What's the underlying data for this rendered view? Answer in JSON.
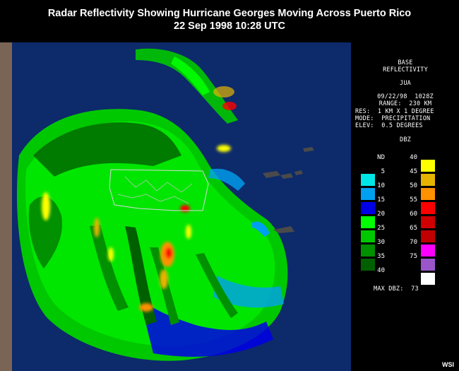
{
  "title": {
    "line1": "Radar Reflectivity Showing Hurricane Georges Moving Across Puerto Rico",
    "line2": "22 Sep 1998 10:28 UTC"
  },
  "panel": {
    "product_line1": "BASE",
    "product_line2": "REFLECTIVITY",
    "station": "JUA",
    "datetime": "09/22/98  1028Z",
    "range": "RANGE:  230 KM",
    "resolution": "RES:  1 KM X 1 DEGREE",
    "mode": "MODE:  PRECIPITATION",
    "elevation": "ELEV:  0.5 DEGREES",
    "unit": "DBZ",
    "max_dbz": "MAX DBZ:  73"
  },
  "legend": {
    "left": [
      {
        "label": "ND",
        "color": "#000000"
      },
      {
        "label": "5",
        "color": "#00e6e6"
      },
      {
        "label": "10",
        "color": "#00a0f0"
      },
      {
        "label": "15",
        "color": "#0000e6"
      },
      {
        "label": "20",
        "color": "#00ff00"
      },
      {
        "label": "25",
        "color": "#00c800"
      },
      {
        "label": "30",
        "color": "#009000"
      },
      {
        "label": "35",
        "color": "#006000"
      }
    ],
    "left_last_label": "40",
    "right": [
      {
        "label": "40",
        "color": "#ffff00"
      },
      {
        "label": "45",
        "color": "#e6b400"
      },
      {
        "label": "50",
        "color": "#ff9000"
      },
      {
        "label": "55",
        "color": "#ff0000"
      },
      {
        "label": "60",
        "color": "#d00000"
      },
      {
        "label": "65",
        "color": "#c00000"
      },
      {
        "label": "70",
        "color": "#ff00ff"
      },
      {
        "label": "75",
        "color": "#9955c9"
      }
    ],
    "right_last_color": "#ffffff"
  },
  "colors": {
    "frame": "#7a6456",
    "ocean": "#0d2a6b",
    "land": "#ffffff"
  },
  "credit": "WSI"
}
